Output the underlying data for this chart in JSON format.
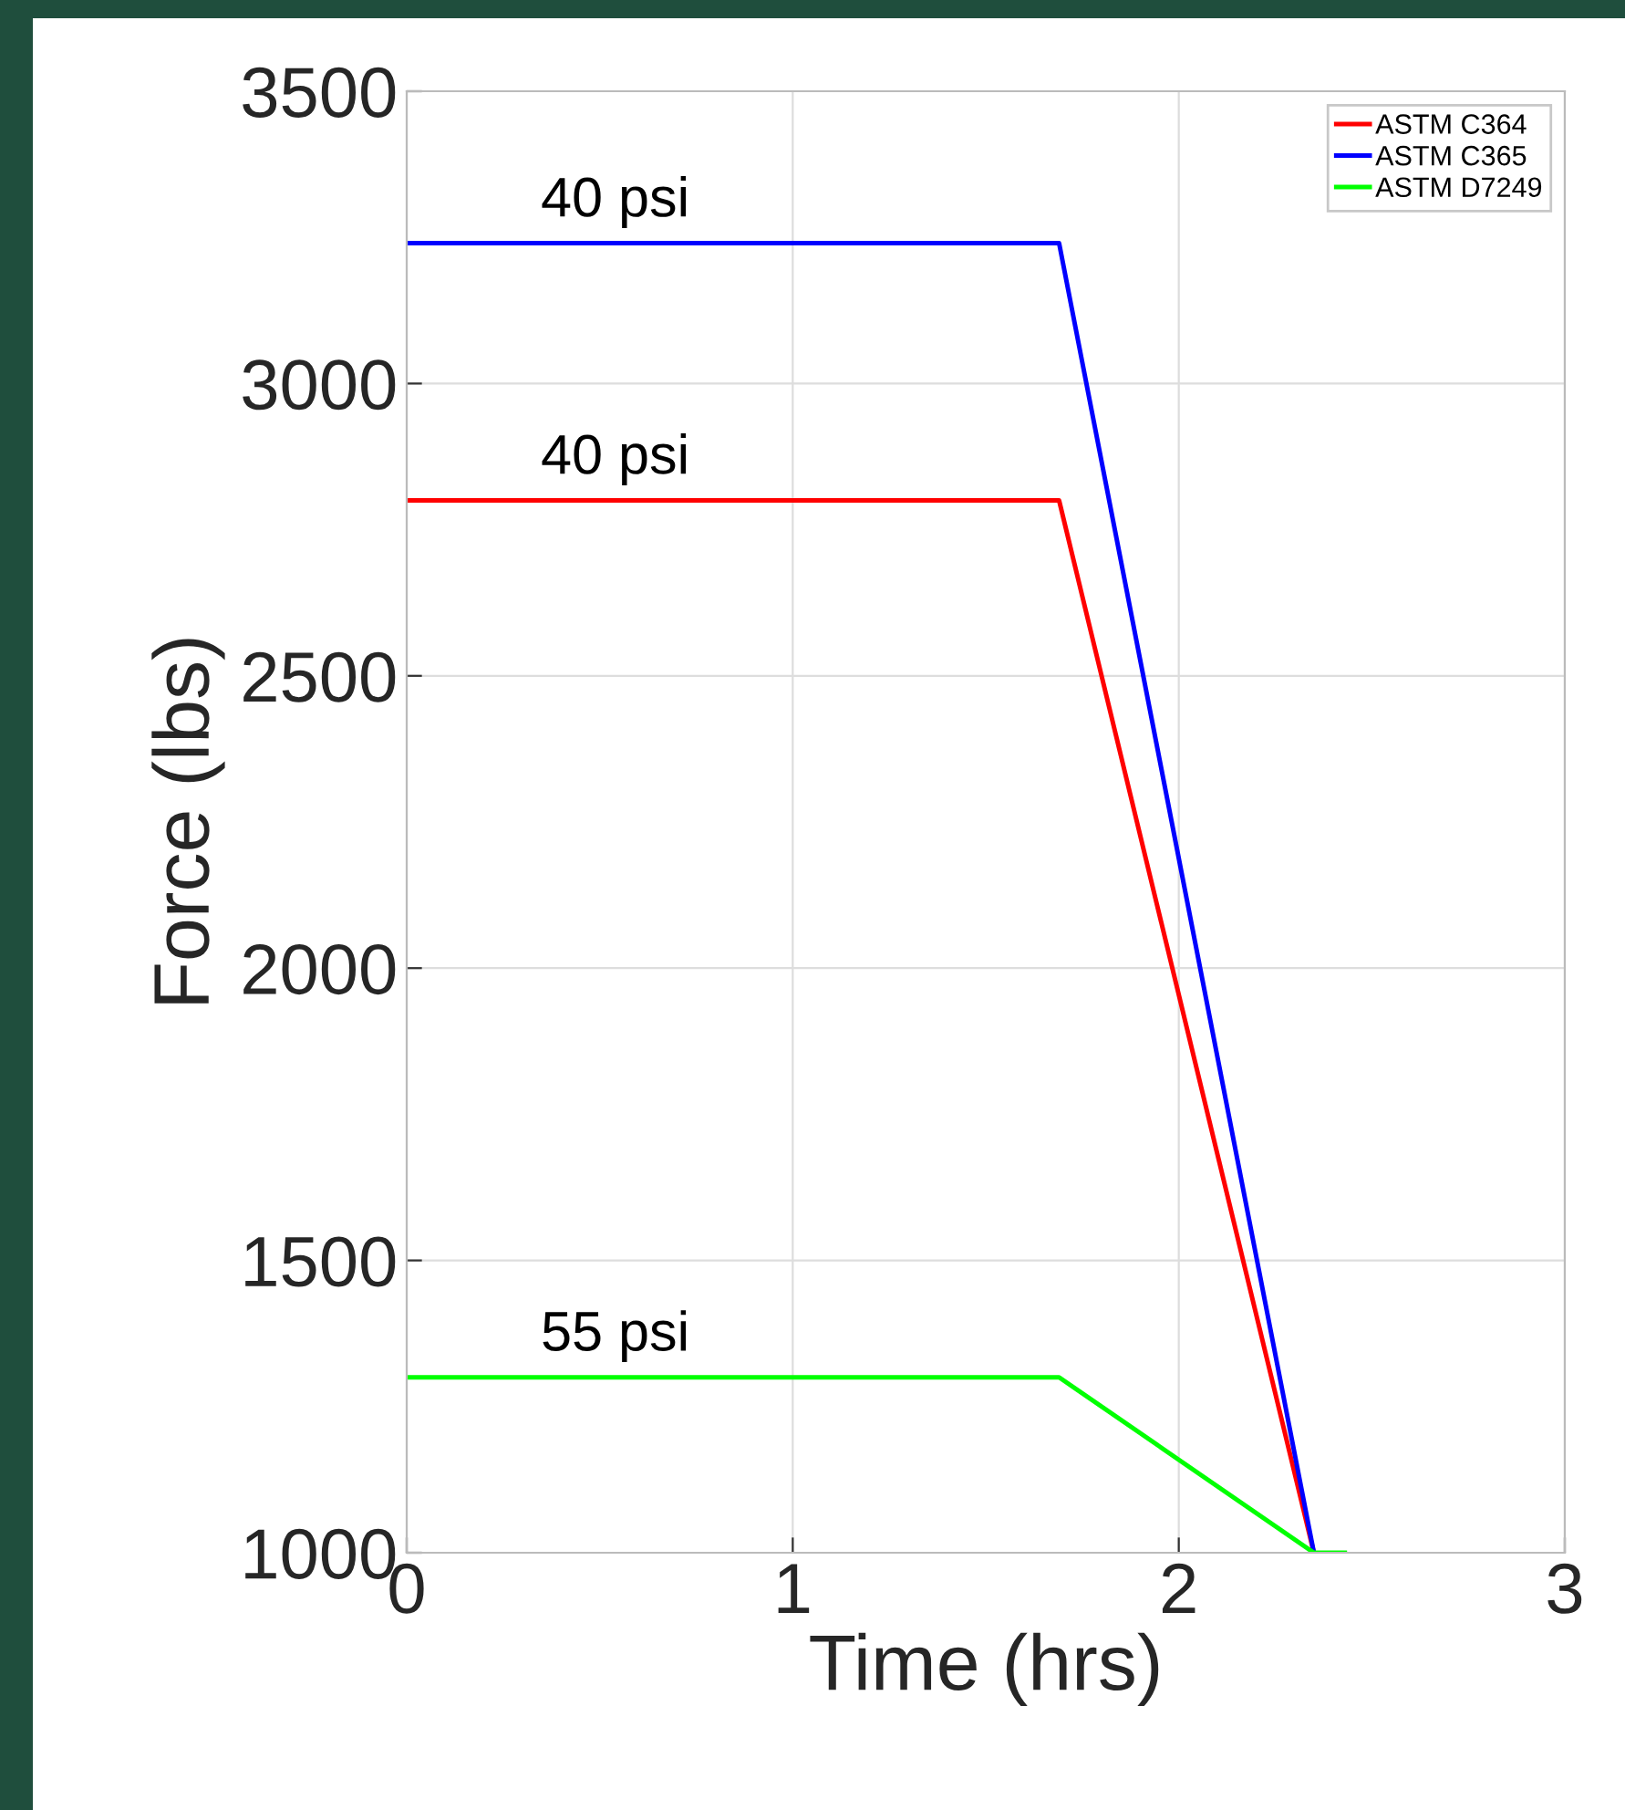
{
  "chart_data": {
    "type": "line",
    "xlabel": "Time (hrs)",
    "ylabel": "Force (lbs)",
    "xlim": [
      0,
      3
    ],
    "ylim": [
      1000,
      3500
    ],
    "xticks": [
      0,
      1,
      2,
      3
    ],
    "yticks": [
      1000,
      1500,
      2000,
      2500,
      3000,
      3500
    ],
    "grid": true,
    "legend": "top right",
    "marker": "none",
    "line_style": "solid",
    "series": [
      {
        "name": "ASTM C364",
        "color": "#ff0000",
        "x": [
          0,
          1.69,
          2.35
        ],
        "values": [
          2800,
          2800,
          1000
        ]
      },
      {
        "name": "ASTM C365",
        "color": "#0000ff",
        "x": [
          0,
          1.69,
          2.35
        ],
        "values": [
          3240,
          3240,
          1000
        ]
      },
      {
        "name": "ASTM D7249",
        "color": "#00ff00",
        "x": [
          0,
          1.69,
          2.35,
          2.43
        ],
        "values": [
          1300,
          1300,
          1000,
          1000
        ]
      }
    ],
    "annotations": [
      {
        "text": "40 psi",
        "y": 3240
      },
      {
        "text": "40 psi",
        "y": 2800
      },
      {
        "text": "55 psi",
        "y": 1300
      }
    ]
  }
}
